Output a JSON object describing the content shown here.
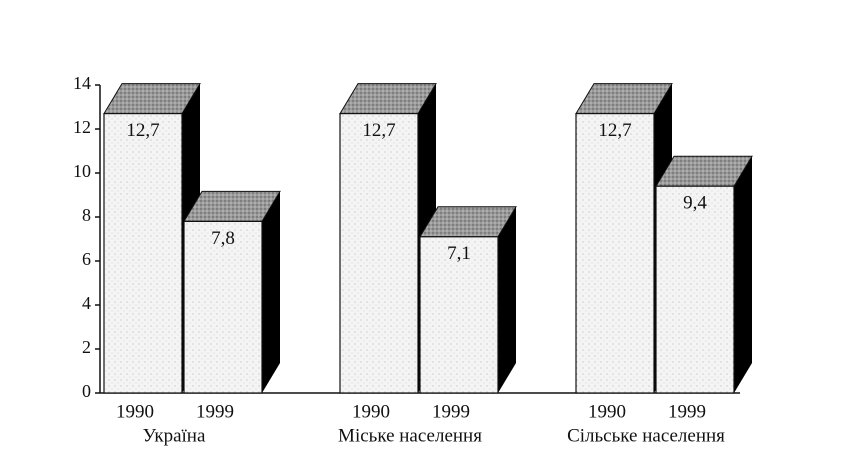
{
  "chart_data": {
    "type": "bar3d",
    "categories": [
      "Україна",
      "Міське населення",
      "Сільське населення"
    ],
    "series": [
      {
        "name": "1990",
        "values": [
          12.7,
          12.7,
          12.7
        ],
        "value_labels": [
          "12,7",
          "12,7",
          "12,7"
        ]
      },
      {
        "name": "1999",
        "values": [
          7.8,
          7.1,
          9.4
        ],
        "value_labels": [
          "7,8",
          "7,1",
          "9,4"
        ]
      }
    ],
    "ylim": [
      0,
      14
    ],
    "yticks": [
      0,
      2,
      4,
      6,
      8,
      10,
      12,
      14
    ]
  }
}
